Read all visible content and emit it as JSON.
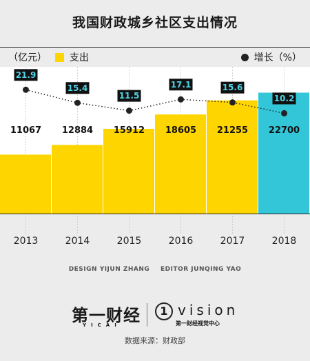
{
  "title": "我国财政城乡社区支出情况",
  "legend": {
    "unit": "（亿元）",
    "bar_series": "支出",
    "line_series": "增长（%）"
  },
  "credits": {
    "design": "DESIGN YIJUN ZHANG",
    "editor": "EDITOR JUNQING YAO"
  },
  "logos": {
    "yicai": "第一财经",
    "yicai_sub": "YICAI",
    "vision_mark": "1",
    "vision": "vision",
    "vision_sub": "第一财经视觉中心"
  },
  "source": "数据来源：财政部",
  "colors": {
    "bar": "#ffd500",
    "bar_highlight": "#33c6d8",
    "label_box": "#111111",
    "label_text": "#4fd4e6"
  },
  "chart_data": {
    "type": "bar",
    "categories": [
      "2013",
      "2014",
      "2015",
      "2016",
      "2017",
      "2018"
    ],
    "series": [
      {
        "name": "支出",
        "type": "bar",
        "values": [
          11067,
          12884,
          15912,
          18605,
          21255,
          22700
        ]
      },
      {
        "name": "增长（%）",
        "type": "line",
        "values": [
          21.9,
          15.4,
          11.5,
          17.1,
          15.6,
          10.2
        ]
      }
    ],
    "highlight_category": "2018",
    "grid": true
  }
}
